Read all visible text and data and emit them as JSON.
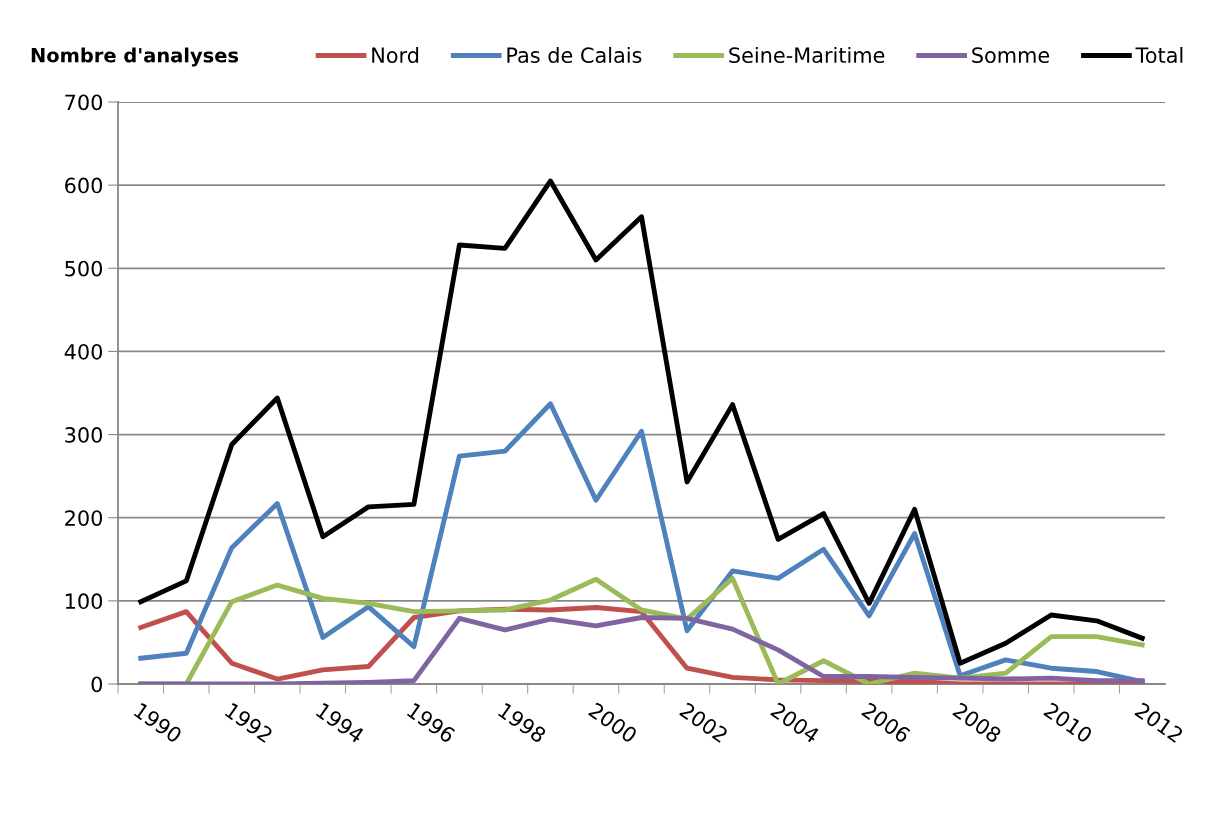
{
  "chart_data": {
    "type": "line",
    "ylabel": "Nombre d'analyses",
    "categories": [
      "1990",
      null,
      "1992",
      null,
      "1994",
      null,
      "1996",
      null,
      "1998",
      null,
      "2000",
      null,
      "2002",
      null,
      "2004",
      null,
      "2006",
      null,
      "2008",
      null,
      "2010",
      null,
      "2012"
    ],
    "series": [
      {
        "name": "Nord",
        "color": "#c0504d",
        "values": [
          68,
          87,
          25,
          6,
          17,
          21,
          80,
          88,
          90,
          89,
          92,
          87,
          19,
          8,
          5,
          4,
          3,
          3,
          0,
          0,
          0,
          0,
          0
        ]
      },
      {
        "name": "Pas de Calais",
        "color": "#4f81bd",
        "values": [
          31,
          37,
          164,
          217,
          56,
          93,
          45,
          274,
          280,
          337,
          221,
          304,
          64,
          136,
          127,
          162,
          82,
          181,
          10,
          29,
          19,
          15,
          3
        ]
      },
      {
        "name": "Seine-Maritime",
        "color": "#9bbb59",
        "values": [
          0,
          0,
          99,
          119,
          103,
          97,
          87,
          88,
          89,
          101,
          126,
          89,
          78,
          127,
          0,
          28,
          0,
          13,
          7,
          13,
          57,
          57,
          47
        ]
      },
      {
        "name": "Somme",
        "color": "#8064a2",
        "values": [
          0,
          0,
          0,
          0,
          1,
          2,
          4,
          79,
          65,
          78,
          70,
          80,
          79,
          66,
          41,
          9,
          9,
          8,
          7,
          6,
          7,
          4,
          4
        ]
      },
      {
        "name": "Total",
        "color": "#000000",
        "values": [
          99,
          124,
          288,
          344,
          177,
          213,
          216,
          528,
          524,
          605,
          510,
          562,
          243,
          336,
          174,
          205,
          97,
          210,
          25,
          49,
          83,
          76,
          55
        ]
      }
    ],
    "ylim": [
      0,
      700
    ],
    "yticks": [
      0,
      100,
      200,
      300,
      400,
      500,
      600,
      700
    ],
    "grid": "y",
    "legend": "top",
    "marker": "none",
    "line_style": "solid"
  }
}
